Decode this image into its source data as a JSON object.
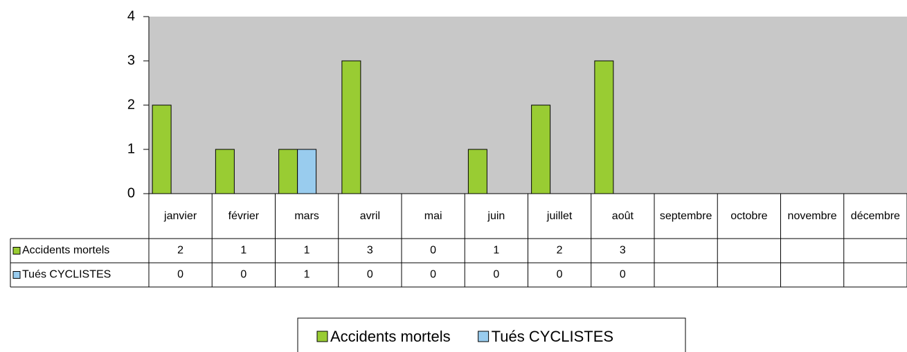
{
  "chart_data": {
    "type": "bar",
    "categories": [
      "janvier",
      "février",
      "mars",
      "avril",
      "mai",
      "juin",
      "juillet",
      "août",
      "septembre",
      "octobre",
      "novembre",
      "décembre"
    ],
    "series": [
      {
        "name": "Accidents mortels",
        "color": "#99cc33",
        "values": [
          2,
          1,
          1,
          3,
          0,
          1,
          2,
          3,
          null,
          null,
          null,
          null
        ]
      },
      {
        "name": "Tués CYCLISTES",
        "color": "#99ccee",
        "values": [
          0,
          0,
          1,
          0,
          0,
          0,
          0,
          0,
          null,
          null,
          null,
          null
        ]
      }
    ],
    "ylim": [
      0,
      4
    ],
    "yticks": [
      0,
      1,
      2,
      3,
      4
    ],
    "grid": false,
    "legend": "bottom"
  }
}
